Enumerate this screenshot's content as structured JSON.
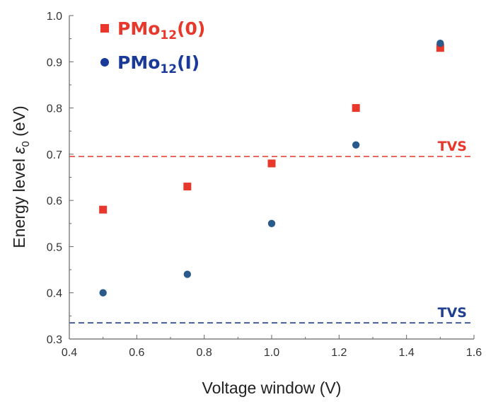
{
  "chart_data": {
    "type": "scatter",
    "xlabel": "Voltage window (V)",
    "ylabel_prefix": "Energy level ",
    "ylabel_symbol": "ε",
    "ylabel_sub": "0",
    "ylabel_suffix": " (eV)",
    "xlim": [
      0.4,
      1.6
    ],
    "ylim": [
      0.3,
      1.0
    ],
    "x_ticks": [
      "0.4",
      "0.6",
      "0.8",
      "1.0",
      "1.2",
      "1.4",
      "1.6"
    ],
    "y_ticks": [
      "0.3",
      "0.4",
      "0.5",
      "0.6",
      "0.7",
      "0.8",
      "0.9",
      "1.0"
    ],
    "grid": false,
    "legend_position": "top-left",
    "series": [
      {
        "name_main": "PMo",
        "name_sub": "12",
        "name_tail": "(0)",
        "marker": "square",
        "color": "#e8372b",
        "x": [
          0.5,
          0.75,
          1.0,
          1.25,
          1.5
        ],
        "y": [
          0.58,
          0.63,
          0.68,
          0.8,
          0.93
        ]
      },
      {
        "name_main": "PMo",
        "name_sub": "12",
        "name_tail": "(I)",
        "marker": "circle",
        "color": "#2a5a8c",
        "x": [
          0.5,
          0.75,
          1.0,
          1.25,
          1.5
        ],
        "y": [
          0.4,
          0.44,
          0.55,
          0.72,
          0.94
        ]
      }
    ],
    "reference_lines": [
      {
        "label": "TVS",
        "y": 0.695,
        "color": "#e8372b"
      },
      {
        "label": "TVS",
        "y": 0.335,
        "color": "#1f3f8f"
      }
    ],
    "legend_text_colors": [
      "#e8372b",
      "#1a3a9a"
    ]
  }
}
